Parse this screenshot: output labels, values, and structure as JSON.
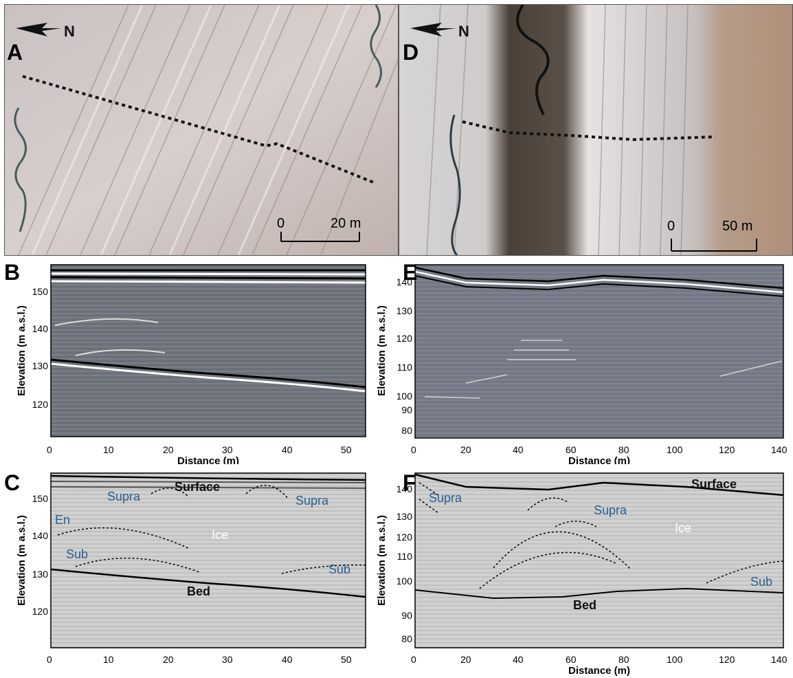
{
  "panel_letters": {
    "A": "A",
    "B": "B",
    "C": "C",
    "D": "D",
    "E": "E",
    "F": "F"
  },
  "north_label": "N",
  "photo_a": {
    "scale_zero": "0",
    "scale_end": "20 m"
  },
  "photo_d": {
    "scale_zero": "0",
    "scale_end": "50 m"
  },
  "radargram_b": {
    "xlabel": "Distance (m)",
    "ylabel": "Elevation (m a.s.l.)",
    "xticks": [
      "0",
      "10",
      "20",
      "30",
      "40",
      "50"
    ],
    "yticks": [
      "150",
      "140",
      "130",
      "120"
    ]
  },
  "radargram_c": {
    "xlabel": "",
    "ylabel": "Elevation (m a.s.l.)",
    "xticks": [
      "0",
      "10",
      "20",
      "30",
      "40",
      "50"
    ],
    "yticks": [
      "150",
      "140",
      "130",
      "120"
    ],
    "annotations": {
      "surface": "Surface",
      "supra1": "Supra",
      "supra2": "Supra",
      "en": "En",
      "ice": "Ice",
      "sub1": "Sub",
      "sub2": "Sub",
      "bed": "Bed"
    }
  },
  "radargram_e": {
    "xlabel": "Distance (m)",
    "ylabel": "Elevation (m a.s.l.)",
    "xticks": [
      "0",
      "20",
      "40",
      "60",
      "80",
      "100",
      "120",
      "140"
    ],
    "yticks": [
      "140",
      "130",
      "120",
      "110",
      "100",
      "90",
      "80"
    ]
  },
  "radargram_f": {
    "xlabel": "Distance (m)",
    "ylabel": "Elevation (m a.s.l.)",
    "xticks": [
      "0",
      "20",
      "40",
      "60",
      "80",
      "100",
      "120",
      "140"
    ],
    "yticks": [
      "140",
      "130",
      "120",
      "110",
      "100",
      "90",
      "80"
    ],
    "annotations": {
      "surface": "Surface",
      "supra1": "Supra",
      "supra2": "Supra",
      "ice": "Ice",
      "sub": "Sub",
      "bed": "Bed"
    }
  }
}
